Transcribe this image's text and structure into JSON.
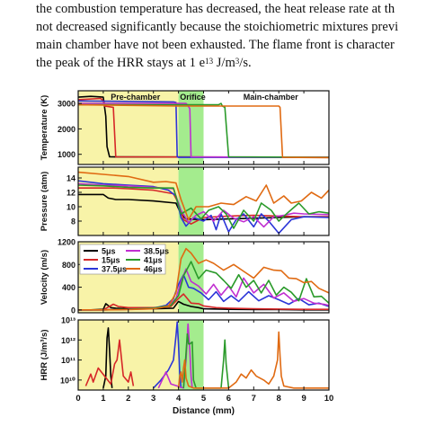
{
  "paragraph": {
    "line1": "the combustion temperature has decreased, the heat release rate at th",
    "line2": "not decreased significantly because the stoichiometric mixtures previ",
    "line3": "main chamber have not been exhausted. The flame front is character",
    "line4_pre": "the peak of the HRR stays at 1 e",
    "line4_sup": "13",
    "line4_post": " J/m",
    "line4_sup2": "3",
    "line4_end": "/s."
  },
  "figure": {
    "region_labels": [
      "Pre-chamber",
      "Orifice",
      "Main-chamber"
    ],
    "xlabel": "Distance (mm)",
    "x_ticks": [
      "0",
      "1",
      "2",
      "3",
      "4",
      "5",
      "6",
      "7",
      "8",
      "9",
      "10"
    ],
    "colors": {
      "5us": "#000000",
      "15us": "#d62728",
      "37.5us": "#2b35d8",
      "38.5us": "#c02fd0",
      "41us": "#2a9a2a",
      "46us": "#e06a12",
      "prechamber": "#f8f3a8",
      "orifice": "#a4ec8e"
    }
  },
  "chart_data": [
    {
      "type": "line",
      "ylabel": "Temperature (K)",
      "y_ticks": [
        "1000",
        "2000",
        "3000"
      ],
      "ylim": [
        600,
        3500
      ],
      "xlim": [
        0,
        10
      ],
      "series": [
        {
          "name": "5μs",
          "x": [
            0,
            0.5,
            1.0,
            1.1,
            1.15,
            1.25,
            10
          ],
          "y": [
            3250,
            3280,
            3250,
            2500,
            1300,
            900,
            880
          ]
        },
        {
          "name": "15μs",
          "x": [
            0,
            0.9,
            1.0,
            1.05,
            1.4,
            1.5,
            10
          ],
          "y": [
            3150,
            3200,
            3100,
            2900,
            2850,
            900,
            880
          ]
        },
        {
          "name": "37.5μs",
          "x": [
            0,
            3.8,
            3.9,
            3.95,
            4.0,
            10
          ],
          "y": [
            3100,
            3060,
            3040,
            900,
            880,
            880
          ]
        },
        {
          "name": "38.5μs",
          "x": [
            0,
            4.3,
            4.35,
            4.45,
            4.5,
            10
          ],
          "y": [
            3000,
            3000,
            2950,
            2800,
            900,
            880
          ]
        },
        {
          "name": "41μs",
          "x": [
            0,
            5.6,
            5.7,
            5.75,
            5.85,
            6.0,
            10
          ],
          "y": [
            2950,
            2950,
            3000,
            2900,
            2850,
            900,
            880
          ]
        },
        {
          "name": "46μs",
          "x": [
            0,
            4.0,
            6.0,
            8.0,
            8.05,
            8.15,
            10
          ],
          "y": [
            2950,
            2900,
            2900,
            2900,
            2850,
            880,
            870
          ]
        }
      ]
    },
    {
      "type": "line",
      "ylabel": "Pressure (atm)",
      "y_ticks": [
        "8",
        "10",
        "12",
        "14"
      ],
      "ylim": [
        6,
        15.5
      ],
      "xlim": [
        0,
        10
      ],
      "series": [
        {
          "name": "5μs",
          "x": [
            0,
            1.0,
            1.2,
            1.5,
            2.0,
            3.0,
            3.9,
            4.1,
            4.3,
            5,
            6,
            7,
            8,
            9,
            10
          ],
          "y": [
            11.7,
            11.7,
            11.2,
            11.0,
            11.0,
            10.8,
            10.5,
            9.0,
            8.3,
            8.2,
            8.3,
            8.4,
            8.5,
            8.6,
            8.6
          ]
        },
        {
          "name": "15μs",
          "x": [
            0,
            1.4,
            2,
            3,
            3.8,
            4.0,
            4.2,
            4.5,
            5,
            6,
            7,
            8,
            9,
            10
          ],
          "y": [
            12.6,
            12.6,
            12.5,
            12.3,
            11.8,
            10.5,
            8.2,
            7.6,
            8.5,
            8.7,
            8.8,
            8.7,
            8.6,
            8.6
          ]
        },
        {
          "name": "37.5μs",
          "x": [
            0,
            1,
            2,
            3,
            3.6,
            3.9,
            4.1,
            4.3,
            4.6,
            5,
            5.3,
            5.5,
            5.7,
            6.0,
            6.3,
            6.6,
            7.0,
            7.3,
            7.6,
            8.0,
            8.5,
            9,
            10
          ],
          "y": [
            13.6,
            13.2,
            13.0,
            12.8,
            12.3,
            11.5,
            8.5,
            7.3,
            8.5,
            8.0,
            8.8,
            6.8,
            9.0,
            6.5,
            8.2,
            9.0,
            7.2,
            9.0,
            8.0,
            6.3,
            8.2,
            8.6,
            8.5
          ]
        },
        {
          "name": "38.5μs",
          "x": [
            0,
            1,
            2,
            3,
            3.8,
            4.1,
            4.4,
            4.7,
            5,
            5.4,
            5.8,
            6.2,
            6.6,
            7.0,
            7.4,
            7.8,
            8.2,
            8.6,
            9,
            10
          ],
          "y": [
            13.2,
            13.0,
            12.9,
            12.7,
            12.5,
            9.5,
            7.8,
            8.8,
            9.3,
            8.0,
            9.5,
            8.4,
            7.9,
            8.6,
            7.2,
            8.6,
            8.8,
            9.1,
            9.0,
            8.9
          ]
        },
        {
          "name": "41μs",
          "x": [
            0,
            1,
            2,
            3,
            3.8,
            4.1,
            4.5,
            4.9,
            5.2,
            5.6,
            5.9,
            6.2,
            6.6,
            7,
            7.3,
            7.7,
            8.0,
            8.4,
            8.8,
            9.2,
            9.6,
            10
          ],
          "y": [
            13.0,
            12.9,
            12.7,
            12.6,
            12.6,
            9.0,
            9.8,
            8.3,
            9.5,
            10.0,
            9.0,
            7.0,
            9.5,
            8.0,
            10.5,
            9.5,
            8.0,
            9.3,
            10.5,
            9.0,
            9.3,
            9.1
          ]
        },
        {
          "name": "46μs",
          "x": [
            0,
            1,
            2,
            3,
            3.5,
            3.9,
            4.1,
            4.4,
            4.7,
            5.2,
            5.7,
            6.2,
            6.7,
            7.1,
            7.5,
            7.8,
            8.2,
            8.5,
            8.9,
            9.3,
            9.7,
            10
          ],
          "y": [
            14.8,
            14.5,
            14.2,
            13.4,
            13.5,
            13.3,
            11.0,
            8.2,
            10.0,
            10.0,
            10.5,
            10.3,
            11.4,
            10.8,
            13.0,
            10.5,
            11.5,
            10.5,
            10.8,
            12.0,
            11.2,
            12.3
          ]
        }
      ]
    },
    {
      "type": "line",
      "ylabel": "Velocity (m/s)",
      "y_ticks": [
        "0",
        "400",
        "800",
        "1200"
      ],
      "ylim": [
        -50,
        1200
      ],
      "xlim": [
        0,
        10
      ],
      "legend": [
        "5μs",
        "15μs",
        "37.5μs",
        "38.5μs",
        "41μs",
        "46μs"
      ],
      "legend_position": "top-left",
      "series": [
        {
          "name": "5μs",
          "x": [
            0,
            0.5,
            1.0,
            1.1,
            1.3,
            1.5,
            2,
            3,
            3.8,
            4.0,
            4.2,
            4.5,
            4.8,
            5,
            6,
            7,
            8,
            9,
            10
          ],
          "y": [
            0,
            0,
            10,
            110,
            40,
            30,
            20,
            20,
            30,
            150,
            100,
            60,
            40,
            20,
            10,
            5,
            5,
            0,
            0
          ]
        },
        {
          "name": "15μs",
          "x": [
            0,
            1,
            1.4,
            1.6,
            2,
            3,
            3.7,
            4.0,
            4.2,
            4.5,
            4.8,
            5,
            5.5,
            6,
            7,
            8,
            9,
            10
          ],
          "y": [
            0,
            0,
            100,
            60,
            40,
            40,
            60,
            200,
            280,
            120,
            110,
            70,
            40,
            30,
            20,
            15,
            10,
            10
          ]
        },
        {
          "name": "37.5μs",
          "x": [
            0,
            1,
            2,
            3,
            3.5,
            3.8,
            4.0,
            4.2,
            4.4,
            4.6,
            4.9,
            5.2,
            5.5,
            5.8,
            6.1,
            6.4,
            6.8,
            7.2,
            7.6,
            8.0,
            8.4,
            8.8,
            9.2,
            9.6,
            10
          ],
          "y": [
            0,
            0,
            10,
            30,
            80,
            200,
            450,
            620,
            400,
            380,
            300,
            180,
            320,
            150,
            250,
            150,
            320,
            160,
            250,
            180,
            100,
            200,
            90,
            120,
            60
          ]
        },
        {
          "name": "38.5μs",
          "x": [
            0,
            1,
            2,
            3,
            3.6,
            3.9,
            4.1,
            4.3,
            4.5,
            4.8,
            5.1,
            5.4,
            5.7,
            6.0,
            6.3,
            6.6,
            7.0,
            7.4,
            7.8,
            8.2,
            8.6,
            9.0,
            9.4,
            9.8,
            10
          ],
          "y": [
            0,
            0,
            10,
            20,
            80,
            200,
            500,
            720,
            500,
            420,
            280,
            450,
            260,
            420,
            230,
            560,
            300,
            450,
            210,
            300,
            150,
            200,
            120,
            100,
            80
          ]
        },
        {
          "name": "41μs",
          "x": [
            0,
            1,
            2,
            3,
            3.7,
            4.0,
            4.2,
            4.5,
            4.8,
            5.1,
            5.5,
            5.8,
            6.1,
            6.4,
            6.7,
            7.0,
            7.3,
            7.6,
            7.9,
            8.2,
            8.5,
            8.8,
            9.1,
            9.4,
            9.7,
            10
          ],
          "y": [
            0,
            0,
            10,
            30,
            80,
            250,
            600,
            850,
            550,
            700,
            650,
            520,
            380,
            620,
            400,
            520,
            300,
            520,
            260,
            400,
            310,
            160,
            550,
            230,
            240,
            120
          ]
        },
        {
          "name": "46μs",
          "x": [
            0,
            1,
            2,
            3,
            3.6,
            3.9,
            4.1,
            4.3,
            4.5,
            4.8,
            5.1,
            5.4,
            5.8,
            6.2,
            6.6,
            7.0,
            7.4,
            7.8,
            8.1,
            8.4,
            8.7,
            9.0,
            9.3,
            9.6,
            10
          ],
          "y": [
            0,
            0,
            5,
            20,
            60,
            300,
            900,
            1080,
            1000,
            820,
            880,
            820,
            700,
            800,
            680,
            560,
            750,
            700,
            690,
            560,
            550,
            480,
            500,
            380,
            300
          ]
        }
      ]
    },
    {
      "type": "line",
      "ylabel": "HRR (J/m³/s)",
      "y_ticks": [
        "10¹⁰",
        "10¹¹",
        "10¹²",
        "10¹³"
      ],
      "yscale": "log",
      "ylim": [
        9.5,
        13
      ],
      "xlim": [
        0,
        10
      ],
      "series": [
        {
          "name": "5μs",
          "x": [
            1.0,
            1.1,
            1.15,
            1.2,
            1.25,
            1.3,
            1.35
          ],
          "y": [
            9.6,
            10.2,
            12.1,
            12.6,
            11.5,
            10.2,
            9.6
          ]
        },
        {
          "name": "15μs",
          "x": [
            0.3,
            0.5,
            0.6,
            0.8,
            1.3,
            1.45,
            1.55,
            1.65,
            1.7,
            1.8,
            2.0,
            2.1,
            2.2
          ],
          "y": [
            9.7,
            10.3,
            9.9,
            10.6,
            9.8,
            10.8,
            11.0,
            12.0,
            11.4,
            10.2,
            9.9,
            10.4,
            9.7
          ]
        },
        {
          "name": "37.5μs",
          "x": [
            3.0,
            3.3,
            3.6,
            3.8,
            3.9,
            3.95,
            4.0,
            4.05,
            4.1
          ],
          "y": [
            9.6,
            10.0,
            10.5,
            11.0,
            12.2,
            12.9,
            11.8,
            10.3,
            9.6
          ]
        },
        {
          "name": "38.5μs",
          "x": [
            3.2,
            3.5,
            3.7,
            4.2,
            4.3,
            4.38,
            4.45,
            4.5,
            4.55
          ],
          "y": [
            9.6,
            10.4,
            9.8,
            9.6,
            11.0,
            12.8,
            11.5,
            10.2,
            9.6
          ]
        },
        {
          "name": "41μs",
          "x": [
            4.2,
            4.25,
            4.35,
            4.4,
            4.45,
            4.55,
            4.6,
            4.7,
            5.7,
            5.8,
            5.85,
            5.9,
            6.0
          ],
          "y": [
            9.6,
            10.4,
            12.3,
            11.8,
            11.8,
            11.9,
            10.0,
            9.6,
            9.6,
            11.0,
            12.0,
            10.8,
            9.6
          ]
        },
        {
          "name": "46μs",
          "x": [
            4.0,
            4.05,
            4.1,
            4.15,
            4.2,
            4.25,
            4.3,
            4.4,
            4.6,
            5.0,
            5.6,
            6.0,
            6.3,
            6.5,
            6.7,
            6.9,
            7.1,
            7.4,
            7.6,
            7.8,
            7.95,
            8.0,
            8.05,
            8.1,
            8.2,
            8.6,
            9.0,
            9.5,
            10
          ],
          "y": [
            9.6,
            10.2,
            10.4,
            9.9,
            10.6,
            11.0,
            10.1,
            9.7,
            9.6,
            9.6,
            9.6,
            9.6,
            9.9,
            10.3,
            10.1,
            10.5,
            10.2,
            10.0,
            9.8,
            10.2,
            11.0,
            12.4,
            11.2,
            10.2,
            9.7,
            9.6,
            9.6,
            9.6,
            9.6
          ]
        }
      ]
    }
  ]
}
